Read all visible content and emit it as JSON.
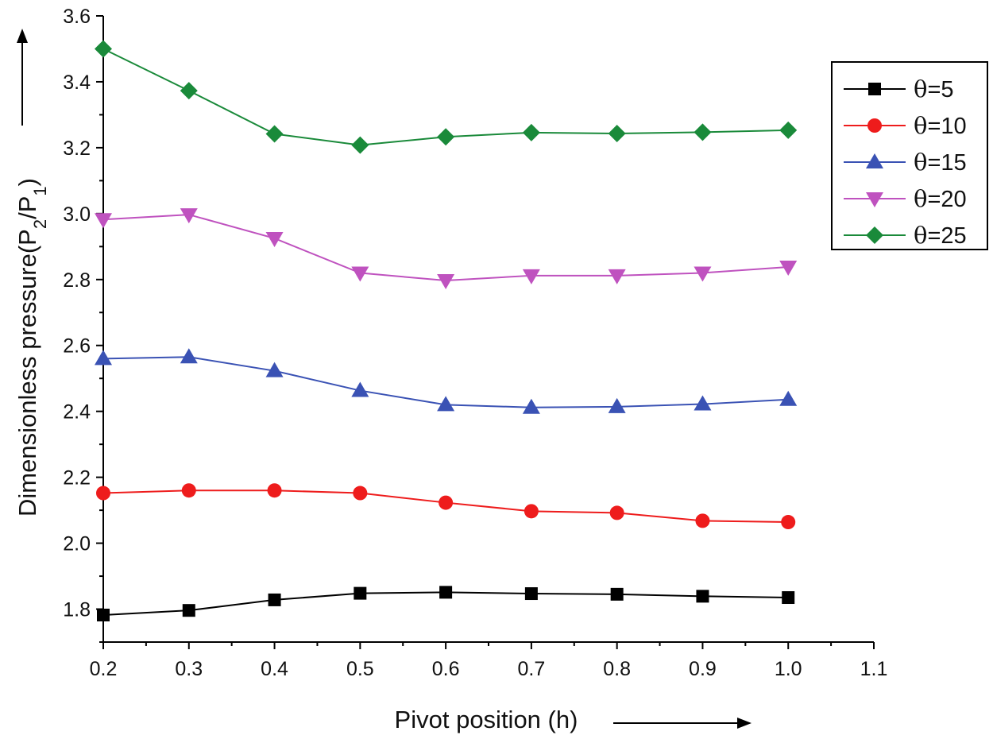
{
  "chart_data": {
    "type": "line",
    "title": "",
    "xlabel": "Pivot position (h)",
    "ylabel": "Dimensionless pressure(P2/P1)",
    "ylabel_parts": {
      "prefix": "Dimensionless pressure(P",
      "sub1": "2",
      "mid": "/P",
      "sub2": "1",
      "suffix": ")"
    },
    "xlim": [
      0.2,
      1.1
    ],
    "ylim": [
      1.7,
      3.6
    ],
    "x_ticks": [
      "0.2",
      "0.3",
      "0.4",
      "0.5",
      "0.6",
      "0.7",
      "0.8",
      "0.9",
      "1.0",
      "1.1"
    ],
    "y_ticks": [
      "1.8",
      "2.0",
      "2.2",
      "2.4",
      "2.6",
      "2.8",
      "3.0",
      "3.2",
      "3.4",
      "3.6"
    ],
    "grid": false,
    "legend_position": "top-right",
    "x": [
      0.2,
      0.3,
      0.4,
      0.5,
      0.6,
      0.7,
      0.8,
      0.9,
      1.0
    ],
    "series": [
      {
        "name": "θ=5",
        "symbol": "θ",
        "suffix": "=5",
        "color": "#000000",
        "marker": "square",
        "values": [
          1.782,
          1.796,
          1.828,
          1.848,
          1.851,
          1.847,
          1.845,
          1.839,
          1.835
        ]
      },
      {
        "name": "θ=10",
        "symbol": "θ",
        "suffix": "=10",
        "color": "#ee1c1c",
        "marker": "circle",
        "values": [
          2.152,
          2.16,
          2.16,
          2.152,
          2.123,
          2.097,
          2.092,
          2.068,
          2.064
        ]
      },
      {
        "name": "θ=15",
        "symbol": "θ",
        "suffix": "=15",
        "color": "#3a52b4",
        "marker": "triangle-up",
        "values": [
          2.56,
          2.565,
          2.523,
          2.463,
          2.42,
          2.412,
          2.414,
          2.422,
          2.436
        ]
      },
      {
        "name": "θ=20",
        "symbol": "θ",
        "suffix": "=20",
        "color": "#bf52bf",
        "marker": "triangle-down",
        "values": [
          2.982,
          2.997,
          2.925,
          2.82,
          2.797,
          2.812,
          2.812,
          2.82,
          2.838
        ]
      },
      {
        "name": "θ=25",
        "symbol": "θ",
        "suffix": "=25",
        "color": "#1a8a3a",
        "marker": "diamond",
        "values": [
          3.5,
          3.373,
          3.242,
          3.208,
          3.233,
          3.246,
          3.243,
          3.247,
          3.253
        ]
      }
    ]
  }
}
